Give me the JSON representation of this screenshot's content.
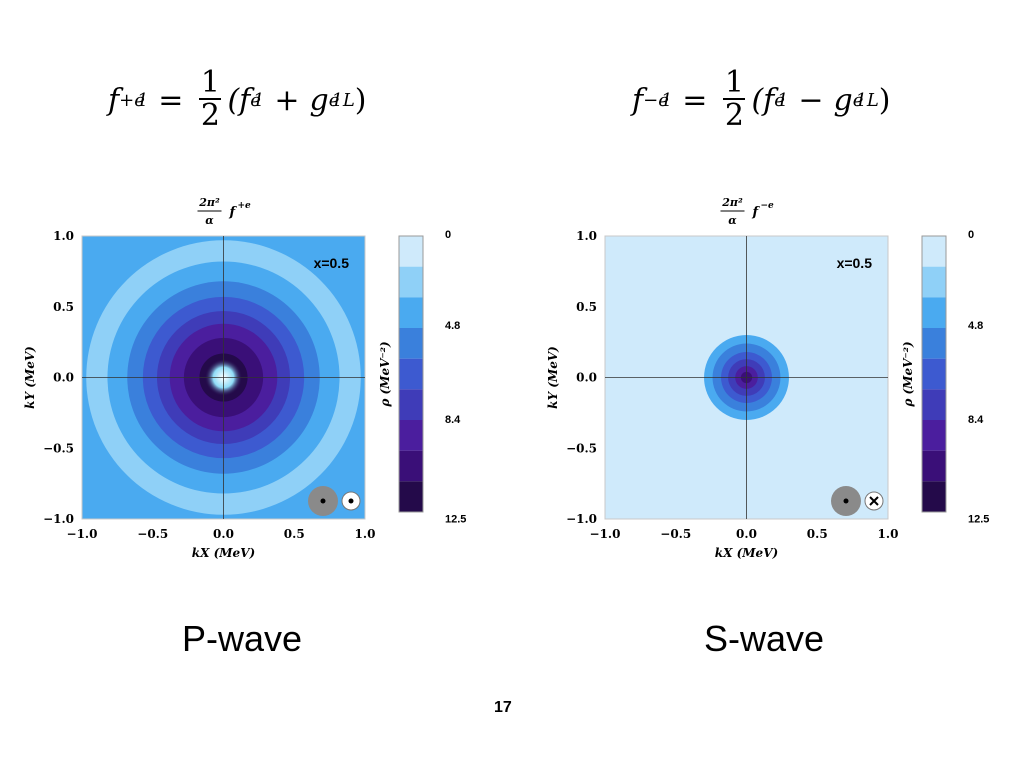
{
  "slide": {
    "page_number": "17",
    "left_caption": "P-wave",
    "right_caption": "S-wave"
  },
  "formulas": {
    "left": {
      "lhs_main": "f",
      "lhs_sub": "1",
      "lhs_sup": "+e",
      "op": "(f",
      "t1_sub": "1",
      "t1_sup": "e",
      "plus": "+",
      "g": "g",
      "g_sub": "1L",
      "g_sup": "e",
      "close": ")"
    },
    "right": {
      "lhs_main": "f",
      "lhs_sub": "1",
      "lhs_sup": "−e",
      "op": "(f",
      "t1_sub": "1",
      "t1_sup": "e",
      "plus": "−",
      "g": "g",
      "g_sub": "1L",
      "g_sup": "e",
      "close": ")"
    },
    "equals": "=",
    "frac_num": "1",
    "frac_den": "2"
  },
  "colors": {
    "levels": [
      "#cfeafb",
      "#8fd0f7",
      "#4aaaf0",
      "#3a80dc",
      "#3d5ad0",
      "#3f3cb8",
      "#4b1e9e",
      "#3a0f78",
      "#240a4a"
    ],
    "axis_line": "#333333",
    "indicator_gray": "#8a8a8a"
  },
  "chart_data": [
    {
      "type": "heatmap",
      "name": "P-wave",
      "top_label": {
        "prefix_num": "2π²",
        "prefix_den": "α",
        "func": "f",
        "func_sup": "+e"
      },
      "annotation": "x=0.5",
      "xlabel": "k_X (MeV)",
      "ylabel": "k_Y (MeV)",
      "xlim": [
        -1.0,
        1.0
      ],
      "ylim": [
        -1.0,
        1.0
      ],
      "xticks": [
        "−1.0",
        "−0.5",
        "0.0",
        "0.5",
        "1.0"
      ],
      "yticks": [
        "1.0",
        "0.5",
        "0.0",
        "−0.5",
        "−1.0"
      ],
      "colorbar_label": "ρ (MeV⁻²)",
      "colorbar_ticks": [
        "0",
        "4.8",
        "8.4",
        "12.5"
      ],
      "contour_radii_mev": [
        0.97,
        0.82,
        0.68,
        0.57,
        0.47,
        0.38,
        0.28,
        0.17
      ],
      "contour_levels": [
        1,
        2,
        3,
        4,
        5,
        6,
        7,
        8
      ],
      "center_hole_radius_mev": 0.06,
      "polarization": {
        "left": "dot",
        "right": "dot"
      }
    },
    {
      "type": "heatmap",
      "name": "S-wave",
      "top_label": {
        "prefix_num": "2π²",
        "prefix_den": "α",
        "func": "f",
        "func_sup": "−e"
      },
      "annotation": "x=0.5",
      "xlabel": "k_X (MeV)",
      "ylabel": "k_Y (MeV)",
      "xlim": [
        -1.0,
        1.0
      ],
      "ylim": [
        -1.0,
        1.0
      ],
      "xticks": [
        "−1.0",
        "−0.5",
        "0.0",
        "0.5",
        "1.0"
      ],
      "yticks": [
        "1.0",
        "0.5",
        "0.0",
        "−0.5",
        "−1.0"
      ],
      "colorbar_label": "ρ (MeV⁻²)",
      "colorbar_ticks": [
        "0",
        "4.8",
        "8.4",
        "12.5"
      ],
      "contour_radii_mev": [
        0.3,
        0.24,
        0.18,
        0.13,
        0.08,
        0.04
      ],
      "contour_levels": [
        2,
        3,
        4,
        5,
        6,
        7
      ],
      "center_hole_radius_mev": 0,
      "polarization": {
        "left": "dot",
        "right": "cross"
      }
    }
  ]
}
